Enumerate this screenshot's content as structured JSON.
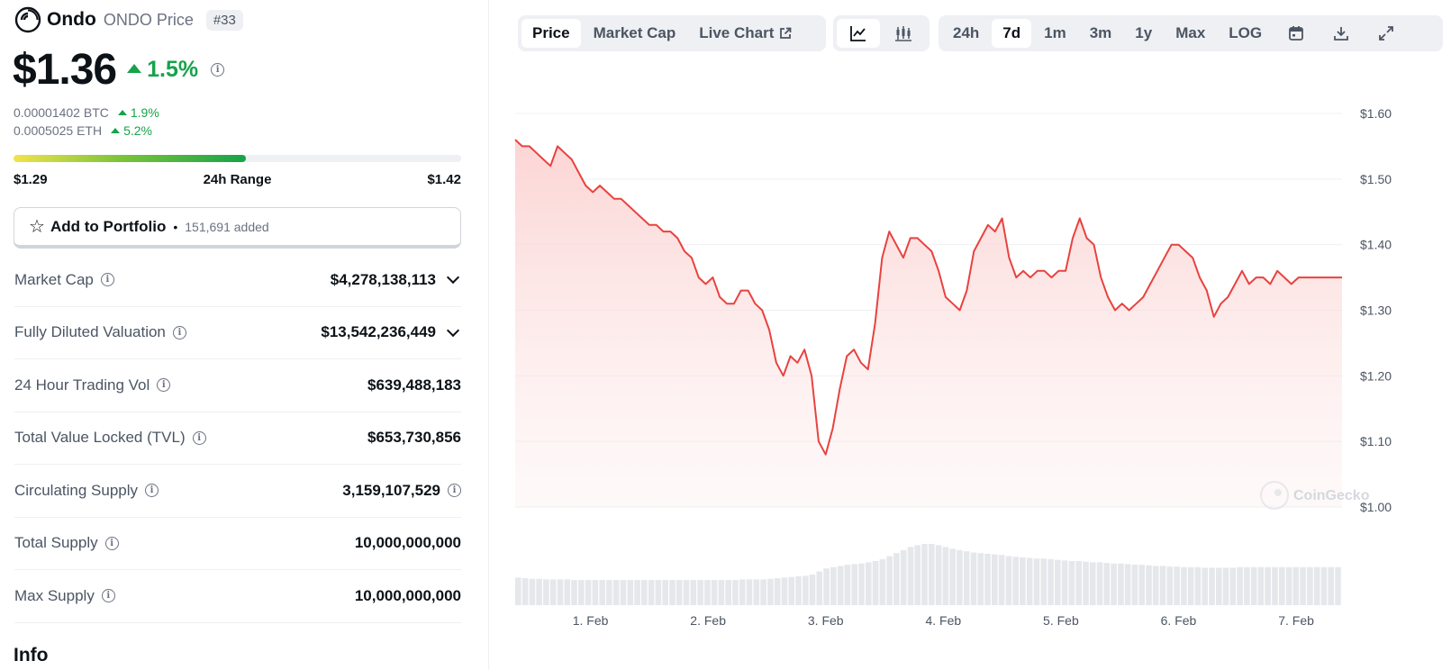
{
  "coin": {
    "name": "Ondo",
    "subtitle": "ONDO Price",
    "rank": "#33",
    "price": "$1.36",
    "change_24h": "1.5%",
    "btc_price": "0.00001402 BTC",
    "btc_change": "1.9%",
    "eth_price": "0.0005025 ETH",
    "eth_change": "5.2%"
  },
  "range": {
    "low": "$1.29",
    "label": "24h Range",
    "high": "$1.42",
    "fill_fraction": 0.52
  },
  "portfolio": {
    "label": "Add to Portfolio",
    "separator": "•",
    "count": "151,691 added"
  },
  "stats": [
    {
      "label": "Market Cap",
      "value": "$4,278,138,113",
      "chevron": true,
      "info_after": false
    },
    {
      "label": "Fully Diluted Valuation",
      "value": "$13,542,236,449",
      "chevron": true,
      "info_after": false
    },
    {
      "label": "24 Hour Trading Vol",
      "value": "$639,488,183",
      "chevron": false,
      "info_after": false
    },
    {
      "label": "Total Value Locked (TVL)",
      "value": "$653,730,856",
      "chevron": false,
      "info_after": false
    },
    {
      "label": "Circulating Supply",
      "value": "3,159,107,529",
      "chevron": false,
      "info_after": true
    },
    {
      "label": "Total Supply",
      "value": "10,000,000,000",
      "chevron": false,
      "info_after": false
    },
    {
      "label": "Max Supply",
      "value": "10,000,000,000",
      "chevron": false,
      "info_after": false
    }
  ],
  "info_heading": "Info",
  "chart_tabs": {
    "price": "Price",
    "market_cap": "Market Cap",
    "live_chart": "Live Chart",
    "active": "Price"
  },
  "chart_view_icons": [
    "line-chart-icon",
    "candlestick-icon"
  ],
  "time_ranges": [
    "24h",
    "7d",
    "1m",
    "3m",
    "1y",
    "Max",
    "LOG"
  ],
  "active_range": "7d",
  "tool_icons": [
    "calendar-icon",
    "download-icon",
    "fullscreen-icon"
  ],
  "watermark": "CoinGecko",
  "colors": {
    "line": "#e8423f",
    "area_top": "#fbd3d2",
    "up": "#16a34a",
    "volume": "#e5e7eb"
  },
  "chart_data": {
    "type": "area",
    "y_tick_labels": [
      "$1.60",
      "$1.50",
      "$1.40",
      "$1.30",
      "$1.20",
      "$1.10",
      "$1.00"
    ],
    "y_ticks": [
      1.6,
      1.5,
      1.4,
      1.3,
      1.2,
      1.1,
      1.0
    ],
    "ylim": [
      1.0,
      1.6
    ],
    "x_tick_labels": [
      "1. Feb",
      "2. Feb",
      "3. Feb",
      "4. Feb",
      "5. Feb",
      "6. Feb",
      "7. Feb"
    ],
    "x_tick_days": [
      1,
      2,
      3,
      4,
      5,
      6,
      7
    ],
    "xlim": [
      0.36,
      7.39
    ],
    "grid": true,
    "series": [
      {
        "x": [
          0.36,
          0.42,
          0.48,
          0.54,
          0.6,
          0.66,
          0.72,
          0.78,
          0.84,
          0.9,
          0.96,
          1.02,
          1.08,
          1.14,
          1.2,
          1.26,
          1.32,
          1.38,
          1.44,
          1.5,
          1.56,
          1.62,
          1.68,
          1.74,
          1.8,
          1.86,
          1.92,
          1.98,
          2.04,
          2.1,
          2.16,
          2.22,
          2.28,
          2.34,
          2.4,
          2.46,
          2.52,
          2.58,
          2.64,
          2.7,
          2.76,
          2.82,
          2.88,
          2.94,
          3.0,
          3.06,
          3.12,
          3.18,
          3.24,
          3.3,
          3.36,
          3.42,
          3.48,
          3.54,
          3.6,
          3.66,
          3.72,
          3.78,
          3.84,
          3.9,
          3.96,
          4.02,
          4.08,
          4.14,
          4.2,
          4.26,
          4.32,
          4.38,
          4.44,
          4.5,
          4.56,
          4.62,
          4.68,
          4.74,
          4.8,
          4.86,
          4.92,
          4.98,
          5.04,
          5.1,
          5.16,
          5.22,
          5.28,
          5.34,
          5.4,
          5.46,
          5.52,
          5.58,
          5.64,
          5.7,
          5.76,
          5.82,
          5.88,
          5.94,
          6.0,
          6.06,
          6.12,
          6.18,
          6.24,
          6.3,
          6.36,
          6.42,
          6.48,
          6.54,
          6.6,
          6.66,
          6.72,
          6.78,
          6.84,
          6.9,
          6.96,
          7.02,
          7.08,
          7.14,
          7.2,
          7.26,
          7.32,
          7.39
        ],
        "y": [
          1.56,
          1.55,
          1.55,
          1.54,
          1.53,
          1.52,
          1.55,
          1.54,
          1.53,
          1.51,
          1.49,
          1.48,
          1.49,
          1.48,
          1.47,
          1.47,
          1.46,
          1.45,
          1.44,
          1.43,
          1.43,
          1.42,
          1.42,
          1.41,
          1.39,
          1.38,
          1.35,
          1.34,
          1.35,
          1.32,
          1.31,
          1.31,
          1.33,
          1.33,
          1.31,
          1.3,
          1.27,
          1.22,
          1.2,
          1.23,
          1.22,
          1.24,
          1.2,
          1.1,
          1.08,
          1.12,
          1.18,
          1.23,
          1.24,
          1.22,
          1.21,
          1.28,
          1.38,
          1.42,
          1.4,
          1.38,
          1.41,
          1.41,
          1.4,
          1.39,
          1.36,
          1.32,
          1.31,
          1.3,
          1.33,
          1.39,
          1.41,
          1.43,
          1.42,
          1.44,
          1.38,
          1.35,
          1.36,
          1.35,
          1.36,
          1.36,
          1.35,
          1.36,
          1.36,
          1.41,
          1.44,
          1.41,
          1.4,
          1.35,
          1.32,
          1.3,
          1.31,
          1.3,
          1.31,
          1.32,
          1.34,
          1.36,
          1.38,
          1.4,
          1.4,
          1.39,
          1.38,
          1.35,
          1.33,
          1.29,
          1.31,
          1.32,
          1.34,
          1.36,
          1.34,
          1.35,
          1.35,
          1.34,
          1.36,
          1.35,
          1.34,
          1.35,
          1.35,
          1.35,
          1.35,
          1.35,
          1.35,
          1.35
        ]
      }
    ],
    "volume_relative": [
      0.45,
      0.44,
      0.43,
      0.43,
      0.42,
      0.42,
      0.42,
      0.42,
      0.41,
      0.41,
      0.41,
      0.41,
      0.41,
      0.41,
      0.41,
      0.41,
      0.41,
      0.41,
      0.41,
      0.41,
      0.41,
      0.41,
      0.41,
      0.41,
      0.41,
      0.41,
      0.41,
      0.41,
      0.41,
      0.41,
      0.41,
      0.41,
      0.42,
      0.42,
      0.42,
      0.42,
      0.43,
      0.44,
      0.45,
      0.46,
      0.47,
      0.48,
      0.5,
      0.55,
      0.6,
      0.62,
      0.64,
      0.66,
      0.67,
      0.68,
      0.7,
      0.72,
      0.75,
      0.8,
      0.85,
      0.9,
      0.95,
      0.98,
      1.0,
      1.0,
      0.98,
      0.95,
      0.92,
      0.9,
      0.88,
      0.86,
      0.85,
      0.84,
      0.83,
      0.82,
      0.8,
      0.79,
      0.78,
      0.77,
      0.76,
      0.76,
      0.75,
      0.74,
      0.73,
      0.72,
      0.72,
      0.71,
      0.7,
      0.7,
      0.69,
      0.68,
      0.68,
      0.67,
      0.66,
      0.66,
      0.65,
      0.64,
      0.64,
      0.63,
      0.63,
      0.62,
      0.62,
      0.62,
      0.61,
      0.61,
      0.61,
      0.61,
      0.61,
      0.62,
      0.62,
      0.62,
      0.62,
      0.62,
      0.62,
      0.62,
      0.62,
      0.62,
      0.62,
      0.62,
      0.62,
      0.62,
      0.62,
      0.62
    ]
  }
}
